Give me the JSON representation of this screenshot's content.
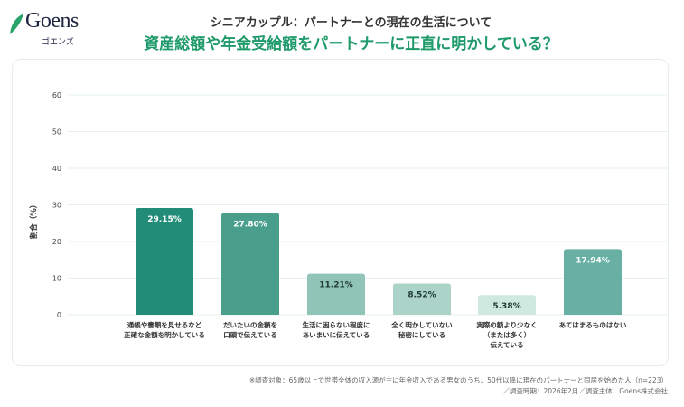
{
  "logo": {
    "word": "Goens",
    "kana": "ゴエンズ"
  },
  "header": {
    "subtitle": "シニアカップル：パートナーとの現在の生活について",
    "title": "資産総額や年金受給額をパートナーに正直に明かしている？"
  },
  "chart_data": {
    "type": "bar",
    "ylabel": "割合（%）",
    "ylim": [
      0,
      60
    ],
    "yticks": [
      "0",
      "10",
      "20",
      "30",
      "40",
      "50",
      "60"
    ],
    "grid": true,
    "categories": [
      [
        "通帳や書類を見せるなど",
        "正確な金額を明かしている"
      ],
      [
        "だいたいの金額を",
        "口頭で伝えている"
      ],
      [
        "生活に困らない程度に",
        "あいまいに伝えている"
      ],
      [
        "全く明かしていない",
        "秘密にしている"
      ],
      [
        "実際の額より少なく",
        "（または多く）",
        "伝えている"
      ],
      [
        "あてはまるものはない"
      ]
    ],
    "values": [
      29.15,
      27.8,
      11.21,
      8.52,
      5.38,
      17.94
    ],
    "data_labels": [
      "29.15%",
      "27.80%",
      "11.21%",
      "8.52%",
      "5.38%",
      "17.94%"
    ],
    "colors": [
      "#238c78",
      "#4a9e8c",
      "#8fc4b6",
      "#acd3c8",
      "#cfe8e0",
      "#68b0a3"
    ],
    "label_colors": [
      "#ffffff",
      "#ffffff",
      "#1f3a34",
      "#1f3a34",
      "#1f3a34",
      "#ffffff"
    ]
  },
  "footnote": {
    "line1": "※調査対象：65歳以上で世帯全体の収入源が主に年金収入である男女のうち、50代以降に現在のパートナーと同居を始めた人（n=223）",
    "line2": "／調査時期：2026年2月／調査主体：Goens株式会社"
  }
}
